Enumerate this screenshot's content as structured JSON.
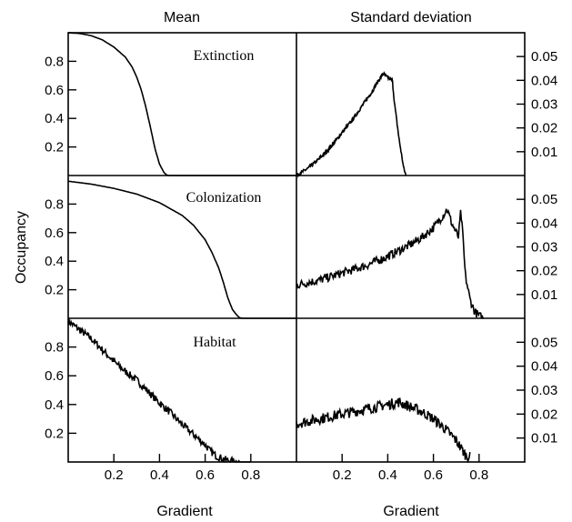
{
  "col_titles": [
    "Mean",
    "Standard deviation"
  ],
  "ylabel": "Occupancy",
  "xlabel": "Gradient",
  "left_ticks": [
    "0.2",
    "0.4",
    "0.6",
    "0.8"
  ],
  "right_ticks": [
    "0.01",
    "0.02",
    "0.03",
    "0.04",
    "0.05"
  ],
  "x_ticks": [
    "0.2",
    "0.4",
    "0.6",
    "0.8"
  ],
  "rows": [
    "Extinction",
    "Colonization",
    "Habitat"
  ],
  "chart_data": {
    "type": "line",
    "layout": "3x2 panel grid",
    "x_range": [
      0,
      1
    ],
    "mean_y_range": [
      0,
      1
    ],
    "sd_y_range": [
      0,
      0.06
    ],
    "series": [
      {
        "name": "Extinction",
        "stat": "mean",
        "x": [
          0,
          0.05,
          0.1,
          0.15,
          0.2,
          0.25,
          0.28,
          0.3,
          0.32,
          0.34,
          0.36,
          0.38,
          0.4,
          0.42,
          0.43,
          0.44,
          0.5,
          0.6,
          0.7,
          0.8,
          0.9,
          1.0
        ],
        "y": [
          1.0,
          0.995,
          0.98,
          0.95,
          0.9,
          0.83,
          0.76,
          0.69,
          0.6,
          0.48,
          0.34,
          0.19,
          0.08,
          0.02,
          0.005,
          0,
          0,
          0,
          0,
          0,
          0,
          0
        ],
        "noise": 0
      },
      {
        "name": "Colonization",
        "stat": "mean",
        "x": [
          0,
          0.1,
          0.2,
          0.3,
          0.4,
          0.5,
          0.55,
          0.6,
          0.63,
          0.66,
          0.68,
          0.7,
          0.72,
          0.74,
          0.75,
          0.76,
          0.8,
          0.9,
          1.0
        ],
        "y": [
          0.96,
          0.94,
          0.91,
          0.87,
          0.81,
          0.72,
          0.65,
          0.55,
          0.46,
          0.35,
          0.25,
          0.14,
          0.06,
          0.02,
          0.005,
          0,
          0,
          0,
          0
        ],
        "noise": 0
      },
      {
        "name": "Habitat",
        "stat": "mean",
        "x": [
          0,
          0.05,
          0.1,
          0.15,
          0.2,
          0.25,
          0.3,
          0.35,
          0.4,
          0.45,
          0.5,
          0.55,
          0.6,
          0.62,
          0.65,
          0.7,
          0.75,
          0.8
        ],
        "y": [
          0.98,
          0.92,
          0.86,
          0.78,
          0.7,
          0.63,
          0.57,
          0.49,
          0.41,
          0.34,
          0.26,
          0.19,
          0.12,
          0.08,
          0.04,
          0.01,
          0.0,
          0.0
        ],
        "noise": 0.025
      },
      {
        "name": "Extinction",
        "stat": "sd",
        "x": [
          0,
          0.05,
          0.1,
          0.15,
          0.2,
          0.25,
          0.3,
          0.33,
          0.36,
          0.38,
          0.4,
          0.42,
          0.43,
          0.45,
          0.47,
          0.48
        ],
        "y": [
          0,
          0.003,
          0.007,
          0.012,
          0.018,
          0.024,
          0.031,
          0.035,
          0.04,
          0.043,
          0.041,
          0.04,
          0.03,
          0.015,
          0.003,
          0
        ],
        "noise": 0.0007
      },
      {
        "name": "Colonization",
        "stat": "sd",
        "x": [
          0,
          0.1,
          0.2,
          0.3,
          0.4,
          0.5,
          0.55,
          0.6,
          0.64,
          0.66,
          0.68,
          0.7,
          0.71,
          0.72,
          0.73,
          0.74,
          0.76,
          0.78,
          0.8,
          0.82
        ],
        "y": [
          0.014,
          0.016,
          0.019,
          0.022,
          0.026,
          0.031,
          0.034,
          0.038,
          0.043,
          0.046,
          0.04,
          0.036,
          0.034,
          0.045,
          0.033,
          0.018,
          0.008,
          0.003,
          0.001,
          0
        ],
        "noise": 0.0018
      },
      {
        "name": "Habitat",
        "stat": "sd",
        "x": [
          0,
          0.05,
          0.1,
          0.15,
          0.2,
          0.25,
          0.3,
          0.35,
          0.4,
          0.45,
          0.5,
          0.55,
          0.6,
          0.65,
          0.7,
          0.72,
          0.74,
          0.76
        ],
        "y": [
          0.016,
          0.017,
          0.018,
          0.019,
          0.02,
          0.021,
          0.022,
          0.023,
          0.024,
          0.025,
          0.023,
          0.021,
          0.018,
          0.014,
          0.009,
          0.006,
          0.003,
          0.002
        ],
        "noise": 0.0022
      }
    ]
  }
}
